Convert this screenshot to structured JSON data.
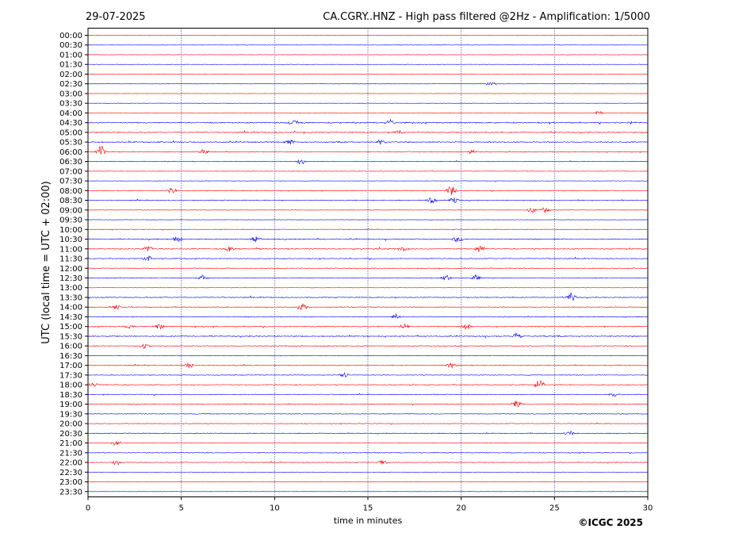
{
  "header": {
    "date": "29-07-2025",
    "title": "CA.CGRY..HNZ - High pass filtered @2Hz - Amplification: 1/5000"
  },
  "footer": {
    "copyright": "©ICGC 2025"
  },
  "colors": {
    "red": "#ff0000",
    "blue": "#0000ff",
    "grid": "#000080"
  },
  "chart_data": {
    "type": "line",
    "xlabel": "time in minutes",
    "ylabel": "UTC (local time = UTC + 02:00)",
    "xlim": [
      0,
      30
    ],
    "x_ticks": [
      0,
      5,
      10,
      15,
      20,
      25,
      30
    ],
    "grid_x": true,
    "rows": [
      "00:00",
      "00:30",
      "01:00",
      "01:30",
      "02:00",
      "02:30",
      "03:00",
      "03:30",
      "04:00",
      "04:30",
      "05:00",
      "05:30",
      "06:00",
      "06:30",
      "07:00",
      "07:30",
      "08:00",
      "08:30",
      "09:00",
      "09:30",
      "10:00",
      "10:30",
      "11:00",
      "11:30",
      "12:00",
      "12:30",
      "13:00",
      "13:30",
      "14:00",
      "14:30",
      "15:00",
      "15:30",
      "16:00",
      "16:30",
      "17:00",
      "17:30",
      "18:00",
      "18:30",
      "19:00",
      "19:30",
      "20:00",
      "20:30",
      "21:00",
      "21:30",
      "22:00",
      "22:30",
      "23:00",
      "23:30"
    ],
    "series_colors": "alternating red (even rows) and blue (odd rows)",
    "row_activity": [
      0.05,
      0.08,
      0.1,
      0.03,
      0.03,
      0.06,
      0.03,
      0.03,
      0.12,
      0.6,
      0.55,
      0.6,
      0.45,
      0.25,
      0.15,
      0.1,
      0.35,
      0.4,
      0.2,
      0.1,
      0.3,
      0.5,
      0.55,
      0.4,
      0.3,
      0.35,
      0.1,
      0.45,
      0.35,
      0.4,
      0.45,
      0.55,
      0.4,
      0.25,
      0.4,
      0.3,
      0.4,
      0.3,
      0.4,
      0.3,
      0.3,
      0.35,
      0.15,
      0.3,
      0.35,
      0.0,
      0.0,
      0.0
    ],
    "events": [
      {
        "row": "02:30",
        "minute": 21.6,
        "amp": 0.5
      },
      {
        "row": "04:00",
        "minute": 27.4,
        "amp": 0.5
      },
      {
        "row": "04:30",
        "minute": 11.0,
        "amp": 0.7
      },
      {
        "row": "04:30",
        "minute": 16.2,
        "amp": 0.6
      },
      {
        "row": "05:00",
        "minute": 16.6,
        "amp": 0.6
      },
      {
        "row": "05:30",
        "minute": 10.8,
        "amp": 0.8
      },
      {
        "row": "05:30",
        "minute": 15.7,
        "amp": 0.8
      },
      {
        "row": "06:00",
        "minute": 0.7,
        "amp": 1.5
      },
      {
        "row": "06:00",
        "minute": 6.2,
        "amp": 0.7
      },
      {
        "row": "06:00",
        "minute": 20.6,
        "amp": 0.7
      },
      {
        "row": "06:30",
        "minute": 11.4,
        "amp": 0.8
      },
      {
        "row": "08:00",
        "minute": 4.5,
        "amp": 0.7
      },
      {
        "row": "08:00",
        "minute": 19.5,
        "amp": 1.4
      },
      {
        "row": "08:30",
        "minute": 18.4,
        "amp": 1.0
      },
      {
        "row": "08:30",
        "minute": 19.6,
        "amp": 0.8
      },
      {
        "row": "09:00",
        "minute": 23.8,
        "amp": 0.8
      },
      {
        "row": "09:00",
        "minute": 24.5,
        "amp": 0.7
      },
      {
        "row": "10:30",
        "minute": 4.8,
        "amp": 0.9
      },
      {
        "row": "10:30",
        "minute": 9.0,
        "amp": 0.8
      },
      {
        "row": "10:30",
        "minute": 19.8,
        "amp": 0.7
      },
      {
        "row": "11:00",
        "minute": 3.2,
        "amp": 1.0
      },
      {
        "row": "11:00",
        "minute": 7.6,
        "amp": 1.0
      },
      {
        "row": "11:00",
        "minute": 16.9,
        "amp": 0.8
      },
      {
        "row": "11:00",
        "minute": 21.0,
        "amp": 0.8
      },
      {
        "row": "11:30",
        "minute": 3.2,
        "amp": 1.0
      },
      {
        "row": "12:30",
        "minute": 6.2,
        "amp": 0.8
      },
      {
        "row": "12:30",
        "minute": 19.2,
        "amp": 0.8
      },
      {
        "row": "12:30",
        "minute": 20.8,
        "amp": 0.7
      },
      {
        "row": "13:30",
        "minute": 25.9,
        "amp": 1.3
      },
      {
        "row": "14:00",
        "minute": 1.5,
        "amp": 0.7
      },
      {
        "row": "14:00",
        "minute": 11.5,
        "amp": 1.1
      },
      {
        "row": "14:30",
        "minute": 16.5,
        "amp": 0.8
      },
      {
        "row": "15:00",
        "minute": 2.2,
        "amp": 0.7
      },
      {
        "row": "15:00",
        "minute": 3.8,
        "amp": 0.8
      },
      {
        "row": "15:00",
        "minute": 17.0,
        "amp": 0.8
      },
      {
        "row": "15:00",
        "minute": 20.3,
        "amp": 1.0
      },
      {
        "row": "15:30",
        "minute": 23.0,
        "amp": 0.8
      },
      {
        "row": "16:00",
        "minute": 3.0,
        "amp": 0.7
      },
      {
        "row": "17:00",
        "minute": 5.4,
        "amp": 0.8
      },
      {
        "row": "17:00",
        "minute": 19.5,
        "amp": 0.8
      },
      {
        "row": "17:30",
        "minute": 13.7,
        "amp": 0.9
      },
      {
        "row": "18:00",
        "minute": 24.2,
        "amp": 1.3
      },
      {
        "row": "18:00",
        "minute": 0.3,
        "amp": 0.6
      },
      {
        "row": "18:30",
        "minute": 28.2,
        "amp": 0.6
      },
      {
        "row": "19:00",
        "minute": 23.0,
        "amp": 1.6
      },
      {
        "row": "20:30",
        "minute": 25.8,
        "amp": 0.6
      },
      {
        "row": "21:00",
        "minute": 1.5,
        "amp": 0.7
      },
      {
        "row": "22:00",
        "minute": 1.5,
        "amp": 0.7
      },
      {
        "row": "22:00",
        "minute": 15.8,
        "amp": 0.7
      }
    ]
  }
}
